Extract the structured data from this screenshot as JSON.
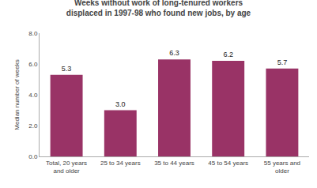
{
  "chart_data": {
    "type": "bar",
    "title": "Weeks without work of long-tenured workers\ndisplaced in 1997-98 who found new jobs, by age",
    "categories": [
      "Total, 20 years\nand older",
      "25 to 34 years",
      "35 to 44 years",
      "45 to 54 years",
      "55 years and\nolder"
    ],
    "values": [
      5.3,
      3.0,
      6.3,
      6.2,
      5.7
    ],
    "value_labels": [
      "5.3",
      "3.0",
      "6.3",
      "6.2",
      "5.7"
    ],
    "data_labels": true,
    "color": "#993366",
    "ylabel": "Median number of weeks",
    "ylim": [
      0,
      8.0
    ],
    "yticks": [
      {
        "value": 0.0,
        "label": "0.0"
      },
      {
        "value": 2.0,
        "label": "2.0"
      },
      {
        "value": 4.0,
        "label": "4.0"
      },
      {
        "value": 6.0,
        "label": "6.0"
      },
      {
        "value": 8.0,
        "label": "8.0"
      }
    ],
    "grid": false
  }
}
